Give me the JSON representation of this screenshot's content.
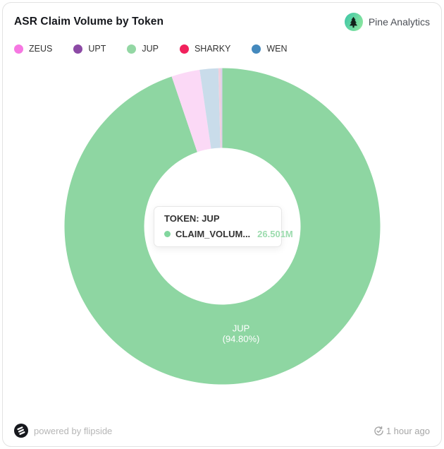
{
  "card": {
    "title": "ASR Claim Volume by Token",
    "brand": {
      "name": "Pine Analytics"
    },
    "footer": {
      "powered_by": "powered by flipside",
      "updated": "1 hour ago"
    }
  },
  "legend": {
    "items": [
      {
        "label": "ZEUS",
        "color": "#f678e2"
      },
      {
        "label": "UPT",
        "color": "#8c4aa5"
      },
      {
        "label": "JUP",
        "color": "#93d7a4"
      },
      {
        "label": "SHARKY",
        "color": "#f1215c"
      },
      {
        "label": "WEN",
        "color": "#4489bd"
      }
    ]
  },
  "tooltip": {
    "header": "TOKEN: JUP",
    "series_name": "CLAIM_VOLUM...",
    "value": "26.501M",
    "dot_color": "#82d69e",
    "value_color": "#9cdcae"
  },
  "chart_label": {
    "line1": "JUP",
    "line2": "(94.80%)"
  },
  "chart_data": {
    "type": "pie",
    "donut": true,
    "title": "ASR Claim Volume by Token",
    "value_field": "CLAIM_VOLUME",
    "highlighted_slice": "JUP",
    "highlighted_value": "26.501M",
    "legend_position": "top",
    "slices_clockwise_from_top": [
      {
        "name": "JUP",
        "pct": 94.8,
        "value_label": "26.501M",
        "fill": "#8ed6a2",
        "state": "highlighted"
      },
      {
        "name": "ZEUS",
        "pct": 2.9,
        "fill": "#fbd9f6",
        "state": "faded"
      },
      {
        "name": "WEN",
        "pct": 1.9,
        "fill": "#c9dcea",
        "state": "faded"
      },
      {
        "name": "SHARKY",
        "pct": 0.22,
        "fill": "#f2cfdd",
        "state": "faded"
      },
      {
        "name": "UPT",
        "pct": 0.18,
        "fill": "#dccfe9",
        "state": "faded"
      }
    ]
  }
}
